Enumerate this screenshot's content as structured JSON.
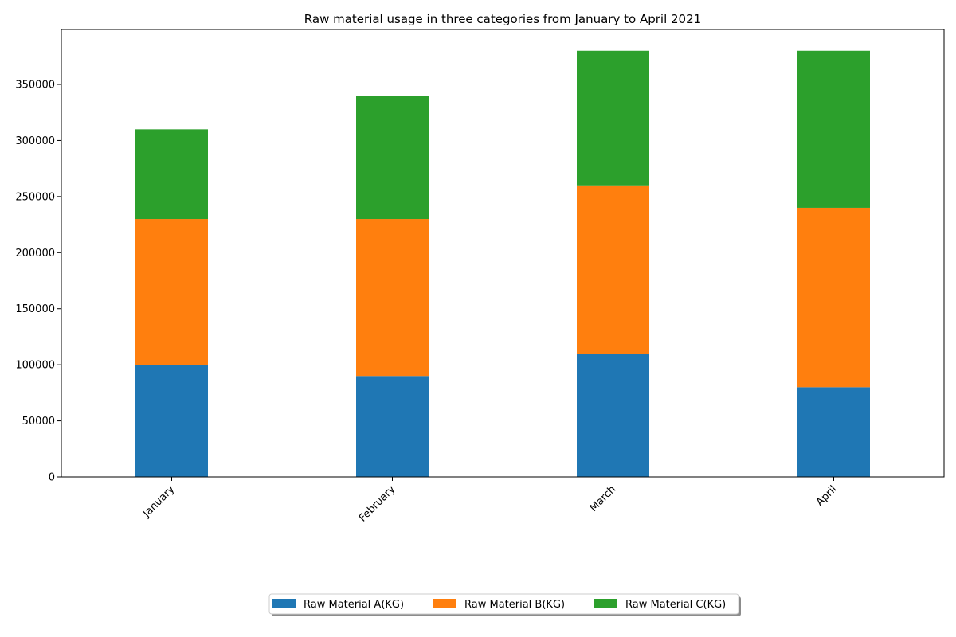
{
  "chart_data": {
    "type": "bar",
    "stacked": true,
    "title": "Raw material usage in three categories from January to April 2021",
    "xlabel": "",
    "ylabel": "",
    "categories": [
      "January",
      "February",
      "March",
      "April"
    ],
    "series": [
      {
        "name": "Raw Material A(KG)",
        "color": "#1f77b4",
        "values": [
          100000,
          90000,
          110000,
          80000
        ]
      },
      {
        "name": "Raw Material B(KG)",
        "color": "#ff7f0e",
        "values": [
          130000,
          140000,
          150000,
          160000
        ]
      },
      {
        "name": "Raw Material C(KG)",
        "color": "#2ca02c",
        "values": [
          80000,
          110000,
          120000,
          140000
        ]
      }
    ],
    "ylim": [
      0,
      399000
    ],
    "yticks": [
      0,
      50000,
      100000,
      150000,
      200000,
      250000,
      300000,
      350000
    ],
    "ytick_labels": [
      "0",
      "50000",
      "100000",
      "150000",
      "200000",
      "250000",
      "300000",
      "350000"
    ],
    "xtick_rotation": 45,
    "grid": false,
    "legend_position": "bottom-center"
  }
}
